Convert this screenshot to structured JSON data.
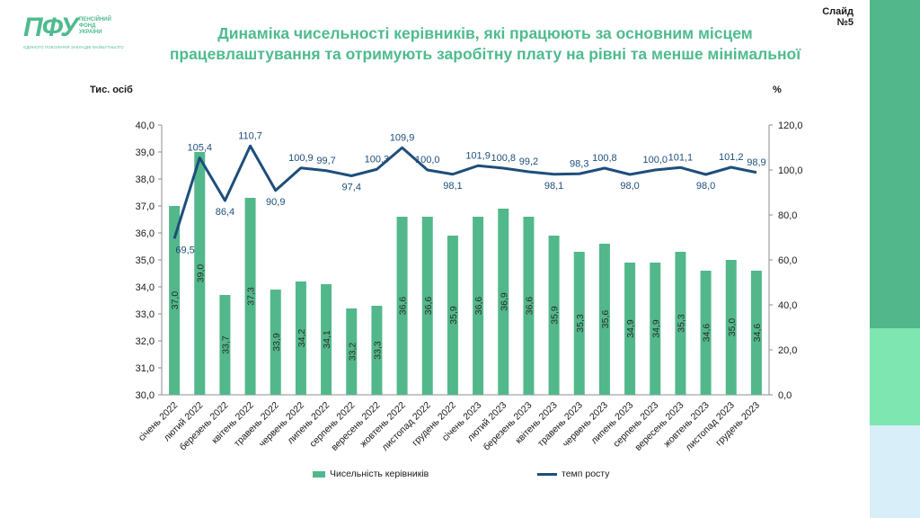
{
  "slide": {
    "number_label": "Слайд №5",
    "title_line1": "Динаміка чисельності керівників, які працюють за основним місцем",
    "title_line2": "працевлаштування та отримують заробітну плату на рівні та менше мінімальної"
  },
  "logo": {
    "mark": "ПФУ",
    "line1": "ПЕНСІЙНИЙ",
    "line2": "ФОНД",
    "line3": "УКРАЇНИ",
    "tagline": "ЄДИНОГО ПОКОЛІННЯ ЗАКЛАДІВ МАЙБУТНЬОГО"
  },
  "colors": {
    "bar": "#52b88b",
    "line": "#1d4e7b",
    "title": "#4fbb8f",
    "axis_text": "#1a1a1a",
    "sidebar_dark": "#52b88b",
    "sidebar_mid": "#7ee6b0",
    "sidebar_light": "#d8eef8"
  },
  "chart_data": {
    "type": "bar+line",
    "categories": [
      "січень 2022",
      "лютий 2022",
      "березень 2022",
      "квітень 2022",
      "травень 2022",
      "червень 2022",
      "липень 2022",
      "серпень 2022",
      "вересень 2022",
      "жовтень 2022",
      "листопад 2022",
      "грудень 2022",
      "січень 2023",
      "лютий 2023",
      "березень 2023",
      "квітень 2023",
      "травень 2023",
      "червень 2023",
      "липень 2023",
      "серпень 2023",
      "вересень 2023",
      "жовтень 2023",
      "листопад 2023",
      "грудень 2023"
    ],
    "series": [
      {
        "name": "Чисельність керівників",
        "type": "bar",
        "axis": "left",
        "values": [
          37.0,
          39.0,
          33.7,
          37.3,
          33.9,
          34.2,
          34.1,
          33.2,
          33.3,
          36.6,
          36.6,
          35.9,
          36.6,
          36.9,
          36.6,
          35.9,
          35.3,
          35.6,
          34.9,
          34.9,
          35.3,
          34.6,
          35.0,
          34.6
        ],
        "labels": [
          "37,0",
          "39,0",
          "33,7",
          "37,3",
          "33,9",
          "34,2",
          "34,1",
          "33,2",
          "33,3",
          "36,6",
          "36,6",
          "35,9",
          "36,6",
          "36,9",
          "36,6",
          "35,9",
          "35,3",
          "35,6",
          "34,9",
          "34,9",
          "35,3",
          "34,6",
          "35,0",
          "34,6"
        ]
      },
      {
        "name": "темп росту",
        "type": "line",
        "axis": "right",
        "values": [
          69.5,
          105.4,
          86.4,
          110.7,
          90.9,
          100.9,
          99.7,
          97.4,
          100.3,
          109.9,
          100.0,
          98.1,
          101.9,
          100.8,
          99.2,
          98.1,
          98.3,
          100.8,
          98.0,
          100.0,
          101.1,
          98.0,
          101.2,
          98.9
        ],
        "labels": [
          "69,5",
          "105,4",
          "86,4",
          "110,7",
          "90,9",
          "100,9",
          "99,7",
          "97,4",
          "100,3",
          "109,9",
          "100,0",
          "98,1",
          "101,9",
          "100,8",
          "99,2",
          "98,1",
          "98,3",
          "100,8",
          "98,0",
          "100,0",
          "101,1",
          "98,0",
          "101,2",
          "98,9"
        ]
      }
    ],
    "y_left": {
      "label": "Тис. осіб",
      "range": [
        30.0,
        40.0
      ],
      "ticks": [
        "30,0",
        "31,0",
        "32,0",
        "33,0",
        "34,0",
        "35,0",
        "36,0",
        "37,0",
        "38,0",
        "39,0",
        "40,0"
      ],
      "tick_values": [
        30,
        31,
        32,
        33,
        34,
        35,
        36,
        37,
        38,
        39,
        40
      ]
    },
    "y_right": {
      "label": "%",
      "range": [
        0.0,
        120.0
      ],
      "ticks": [
        "0,0",
        "20,0",
        "40,0",
        "60,0",
        "80,0",
        "100,0",
        "120,0"
      ],
      "tick_values": [
        0,
        20,
        40,
        60,
        80,
        100,
        120
      ]
    },
    "grid": false,
    "legend_position": "bottom"
  },
  "legend": {
    "bar_label": "Чисельність керівників",
    "line_label": "темп росту"
  }
}
